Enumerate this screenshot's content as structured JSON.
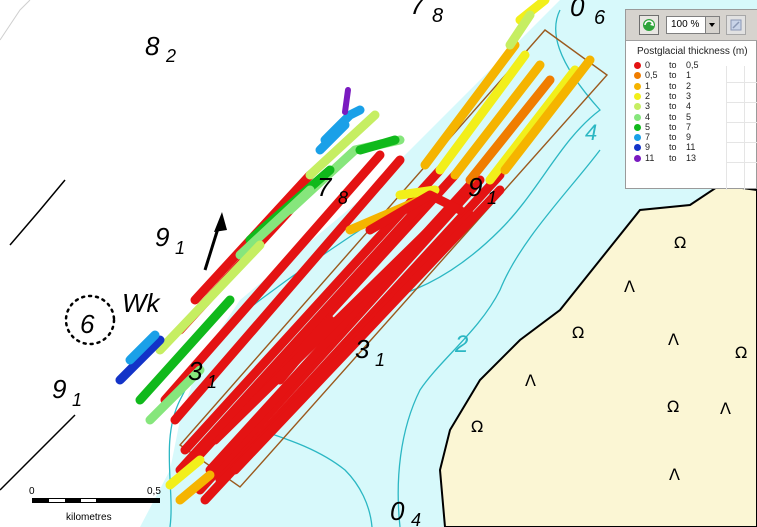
{
  "map_labels": {
    "top_left_depth": "8",
    "top_left_depth_sub": "2",
    "top_center_depth": "7",
    "top_center_depth_sub": "8",
    "top_right_depth": "0",
    "top_right_depth_sub": "6",
    "left_mid_depth": "9",
    "left_mid_depth_sub": "1",
    "left_low_depth": "9",
    "left_low_depth_sub": "1",
    "track_mid_depth": "7",
    "track_mid_depth_sub": "8",
    "track_right_depth": "9",
    "track_right_depth_sub": "1",
    "center_depth": "3",
    "center_depth_sub": "1",
    "lower_track_depth": "3",
    "lower_track_depth_sub": "1",
    "bottom_depth": "0",
    "bottom_depth_sub": "4",
    "contour_4": "4",
    "contour_2": "2",
    "circle_number": "6",
    "wreck_label": "Wk"
  },
  "toolbar": {
    "zoom_value": "100 %"
  },
  "legend": {
    "title": "Postglacial thickness (m)",
    "items": [
      {
        "from": "0",
        "to_word": "to",
        "to": "0,5",
        "color": "#e41313"
      },
      {
        "from": "0,5",
        "to_word": "to",
        "to": "1",
        "color": "#f07d00"
      },
      {
        "from": "1",
        "to_word": "to",
        "to": "2",
        "color": "#f5b400"
      },
      {
        "from": "2",
        "to_word": "to",
        "to": "3",
        "color": "#f2ef1a"
      },
      {
        "from": "3",
        "to_word": "to",
        "to": "4",
        "color": "#c6ee62"
      },
      {
        "from": "4",
        "to_word": "to",
        "to": "5",
        "color": "#86e67c"
      },
      {
        "from": "5",
        "to_word": "to",
        "to": "7",
        "color": "#10b91b"
      },
      {
        "from": "7",
        "to_word": "to",
        "to": "9",
        "color": "#1aa0e8"
      },
      {
        "from": "9",
        "to_word": "to",
        "to": "11",
        "color": "#1333c8"
      },
      {
        "from": "11",
        "to_word": "to",
        "to": "13",
        "color": "#7a1ac0"
      }
    ]
  },
  "scalebar": {
    "start_label": "0",
    "end_label": "0,5",
    "unit_label": "kilometres"
  },
  "colors": {
    "shallow_water": "#d7f9fb",
    "land": "#fbf6d4",
    "contour": "#2bb7c3",
    "survey_box": "#9b5a1e"
  }
}
